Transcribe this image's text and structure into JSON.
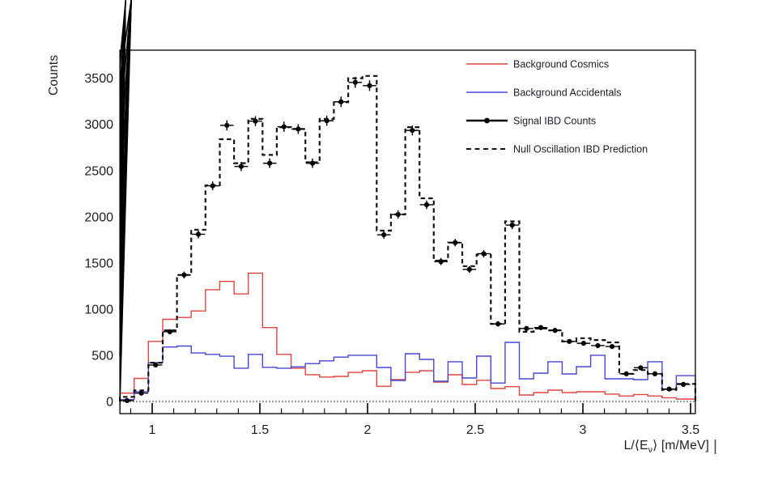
{
  "chart_data": {
    "type": "line",
    "subtype": "step-histograms-with-error-points",
    "title": "",
    "ylabel": "Counts",
    "xlabel_parts": {
      "prefix": "L/⟨E",
      "sub": "ν",
      "suffix": "⟩ [m/MeV]"
    },
    "xlim": [
      0.85,
      3.52
    ],
    "ylim": [
      -130,
      3800
    ],
    "xticks": [
      1,
      1.5,
      2,
      2.5,
      3,
      3.5
    ],
    "xtick_labels": [
      "1",
      "1.5",
      "2",
      "2.5",
      "3",
      "3.5"
    ],
    "yticks": [
      0,
      500,
      1000,
      1500,
      2000,
      2500,
      3000,
      3500
    ],
    "x_minor_step": 0.1,
    "y_minor_step": 100,
    "grid": false,
    "zero_dotted_line": true,
    "legend_position": "top-right-inside",
    "bins": {
      "start": 0.85,
      "width": 0.06625,
      "count": 40
    },
    "series": [
      {
        "name": "Background Cosmics",
        "style": "step",
        "color": "#e0453f",
        "values": [
          90,
          250,
          650,
          890,
          910,
          980,
          1210,
          1300,
          1165,
          1390,
          800,
          510,
          360,
          290,
          265,
          272,
          315,
          333,
          165,
          237,
          316,
          333,
          210,
          289,
          184,
          230,
          140,
          160,
          70,
          96,
          123,
          96,
          105,
          105,
          80,
          60,
          75,
          60,
          40,
          26
        ]
      },
      {
        "name": "Background Accidentals",
        "style": "step",
        "color": "#4646d8",
        "values": [
          20,
          105,
          420,
          590,
          600,
          525,
          510,
          490,
          360,
          510,
          370,
          360,
          375,
          410,
          440,
          480,
          500,
          500,
          368,
          228,
          517,
          456,
          219,
          430,
          254,
          491,
          200,
          640,
          245,
          307,
          430,
          298,
          377,
          500,
          245,
          245,
          237,
          430,
          130,
          280
        ]
      },
      {
        "name": "Signal IBD Counts",
        "style": "points",
        "color": "#000000",
        "values": [
          10,
          90,
          395,
          755,
          1370,
          1810,
          2335,
          2990,
          2545,
          3035,
          2580,
          2975,
          2950,
          2580,
          3040,
          3245,
          3455,
          3420,
          1805,
          2025,
          2935,
          2130,
          1515,
          1720,
          1430,
          1600,
          840,
          1910,
          790,
          800,
          770,
          650,
          630,
          605,
          595,
          300,
          365,
          300,
          135,
          185
        ],
        "errors": [
          3,
          10,
          20,
          27,
          37,
          43,
          48,
          55,
          50,
          55,
          51,
          55,
          54,
          51,
          55,
          57,
          59,
          58,
          42,
          45,
          54,
          46,
          39,
          41,
          38,
          40,
          29,
          44,
          28,
          28,
          28,
          25,
          25,
          25,
          24,
          17,
          19,
          17,
          12,
          14
        ]
      },
      {
        "name": "Null Oscillation IBD Prediction",
        "style": "step-dashed",
        "color": "#151515",
        "values": [
          50,
          120,
          420,
          770,
          1370,
          1860,
          2340,
          2840,
          2580,
          3060,
          2670,
          2970,
          2950,
          2590,
          3060,
          3240,
          3500,
          3525,
          1850,
          2025,
          2970,
          2200,
          1525,
          1720,
          1465,
          1590,
          840,
          1950,
          755,
          790,
          770,
          650,
          685,
          665,
          640,
          300,
          340,
          300,
          125,
          190
        ]
      }
    ],
    "legend": {
      "entries": [
        {
          "label": "Background Cosmics",
          "series_index": 0
        },
        {
          "label": "Background Accidentals",
          "series_index": 1
        },
        {
          "label": "Signal IBD Counts",
          "series_index": 2
        },
        {
          "label": "Null Oscillation IBD Prediction",
          "series_index": 3
        }
      ]
    },
    "text_color": "#1c1c24",
    "frame_color": "#000000"
  },
  "artifacts": {
    "text_cursor_mark": true
  }
}
